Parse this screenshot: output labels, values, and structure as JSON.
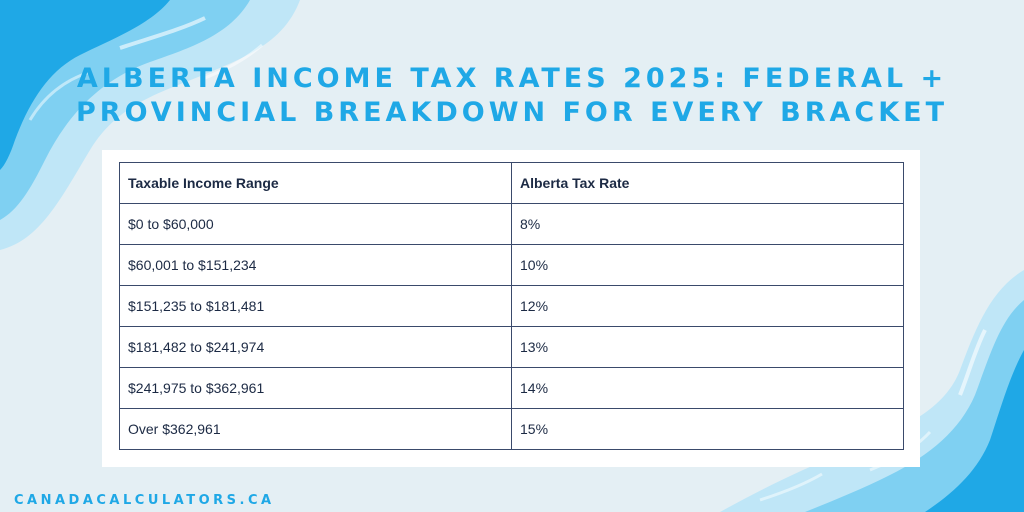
{
  "title": {
    "line1": "Alberta Income Tax Rates 2025: Federal +",
    "line2": "Provincial Breakdown for Every Bracket"
  },
  "table": {
    "headers": [
      "Taxable Income Range",
      "Alberta Tax Rate"
    ],
    "rows": [
      [
        "$0 to $60,000",
        "8%"
      ],
      [
        "$60,001 to $151,234",
        "10%"
      ],
      [
        "$151,235 to $181,481",
        "12%"
      ],
      [
        "$181,482 to $241,974",
        "13%"
      ],
      [
        "$241,975 to $362,961",
        "14%"
      ],
      [
        "Over $362,961",
        "15%"
      ]
    ]
  },
  "footer": "canadacalculators.ca",
  "colors": {
    "background": "#e4eff4",
    "accent": "#1fa8e6",
    "wave_light": "#7fd0f2",
    "wave_pale": "#bfe6f7",
    "text": "#1c2a44"
  }
}
